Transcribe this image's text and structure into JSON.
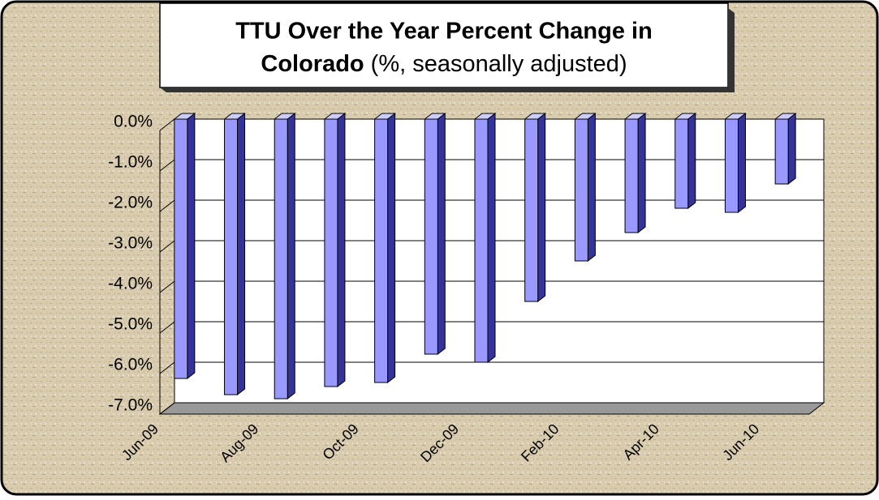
{
  "chart_data": {
    "type": "bar3d",
    "title_lines": [
      "TTU Over the Year Percent Change in",
      "Colorado"
    ],
    "subtitle": "(%, seasonally adjusted)",
    "categories": [
      "Jun-09",
      null,
      "Aug-09",
      null,
      "Oct-09",
      null,
      "Dec-09",
      null,
      "Feb-10",
      null,
      "Apr-10",
      null,
      "Jun-10"
    ],
    "values": [
      -6.4,
      -6.8,
      -6.9,
      -6.6,
      -6.5,
      -5.8,
      -6.0,
      -4.5,
      -3.5,
      -2.8,
      -2.2,
      -2.3,
      -1.6
    ],
    "color": "#9999ff",
    "ylim": [
      -7,
      0
    ],
    "yticks": [
      {
        "value": 0,
        "label": "0.0%"
      },
      {
        "value": -1,
        "label": "-1.0%"
      },
      {
        "value": -2,
        "label": "-2.0%"
      },
      {
        "value": -3,
        "label": "-3.0%"
      },
      {
        "value": -4,
        "label": "-4.0%"
      },
      {
        "value": -5,
        "label": "-5.0%"
      },
      {
        "value": -6,
        "label": "-6.0%"
      },
      {
        "value": -7,
        "label": "-7.0%"
      }
    ],
    "grid": true
  }
}
